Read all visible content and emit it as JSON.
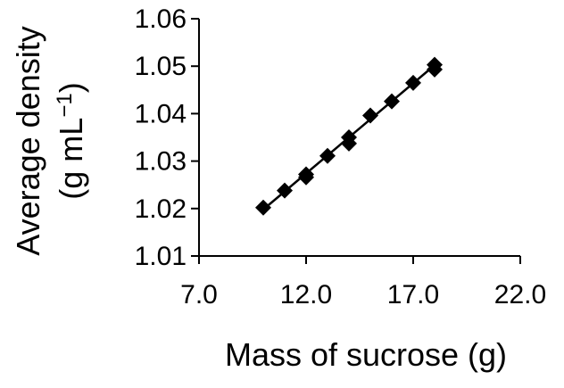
{
  "chart_data": {
    "type": "scatter",
    "title": "",
    "xlabel": "Mass of sucrose (g)",
    "ylabel_line1": "Average density",
    "ylabel_line2": "(g mL",
    "ylabel_superscript": "−1",
    "ylabel_line2_close": ")",
    "xlim": [
      7.0,
      22.0
    ],
    "ylim": [
      1.01,
      1.06
    ],
    "x_ticks": [
      7.0,
      12.0,
      17.0,
      22.0
    ],
    "x_tick_labels": [
      "7.0",
      "12.0",
      "17.0",
      "22.0"
    ],
    "y_ticks": [
      1.01,
      1.02,
      1.03,
      1.04,
      1.05,
      1.06
    ],
    "y_tick_labels": [
      "1.01",
      "1.02",
      "1.03",
      "1.04",
      "1.05",
      "1.06"
    ],
    "grid": false,
    "legend": "none",
    "marker": "diamond",
    "marker_color": "#000000",
    "points": [
      {
        "x": 10.0,
        "y": 1.0202
      },
      {
        "x": 11.0,
        "y": 1.0238
      },
      {
        "x": 12.0,
        "y": 1.0272
      },
      {
        "x": 12.0,
        "y": 1.0266
      },
      {
        "x": 13.0,
        "y": 1.0311
      },
      {
        "x": 14.0,
        "y": 1.035
      },
      {
        "x": 14.0,
        "y": 1.0337
      },
      {
        "x": 15.0,
        "y": 1.0396
      },
      {
        "x": 16.0,
        "y": 1.0426
      },
      {
        "x": 17.0,
        "y": 1.0465
      },
      {
        "x": 18.0,
        "y": 1.0503
      },
      {
        "x": 18.0,
        "y": 1.0493
      }
    ],
    "trendline": {
      "x": [
        10.0,
        18.0
      ],
      "y": [
        1.0198,
        1.0502
      ]
    }
  }
}
